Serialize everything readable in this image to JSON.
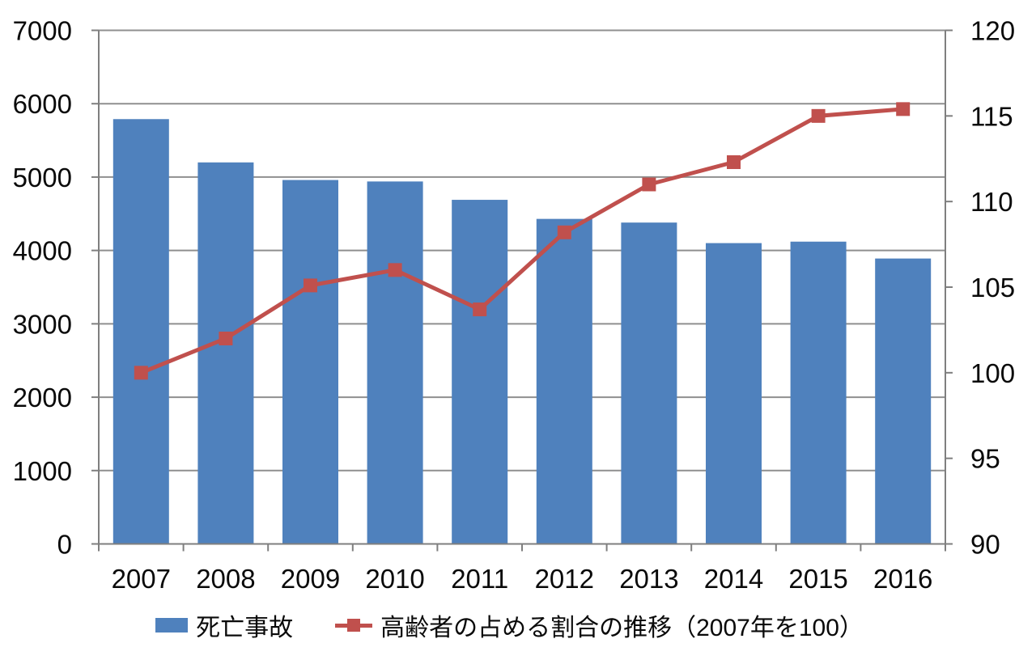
{
  "chart_data": {
    "type": "bar",
    "subtype": "combo-bar-line",
    "title": "",
    "categories": [
      "2007",
      "2008",
      "2009",
      "2010",
      "2011",
      "2012",
      "2013",
      "2014",
      "2015",
      "2016"
    ],
    "series": [
      {
        "name": "死亡事故",
        "type": "bar",
        "axis": "left",
        "color": "#4F81BD",
        "values": [
          5790,
          5200,
          4960,
          4940,
          4690,
          4430,
          4380,
          4100,
          4120,
          3890
        ]
      },
      {
        "name": "高齢者の占める割合の推移（2007年を100）",
        "type": "line",
        "axis": "right",
        "color": "#C0504D",
        "values": [
          100,
          102,
          105.1,
          106,
          103.7,
          108.2,
          111,
          112.3,
          115,
          115.4
        ]
      }
    ],
    "left_axis": {
      "min": 0,
      "max": 7000,
      "step": 1000,
      "tick_labels": [
        "0",
        "1000",
        "2000",
        "3000",
        "4000",
        "5000",
        "6000",
        "7000"
      ]
    },
    "right_axis": {
      "min": 90,
      "max": 120,
      "step": 5,
      "tick_labels": [
        "90",
        "95",
        "100",
        "105",
        "110",
        "115",
        "120"
      ]
    },
    "xlabel": "",
    "ylabel": "",
    "grid": "horizontal",
    "legend_position": "bottom"
  },
  "legend": {
    "bar_label": "死亡事故",
    "line_label": "高齢者の占める割合の推移（2007年を100）"
  },
  "colors": {
    "bar": "#4F81BD",
    "line": "#C0504D",
    "grid": "#8F8F8F",
    "axis": "#7F7F7F",
    "text": "#0a0a0a",
    "background": "#FFFFFF"
  }
}
